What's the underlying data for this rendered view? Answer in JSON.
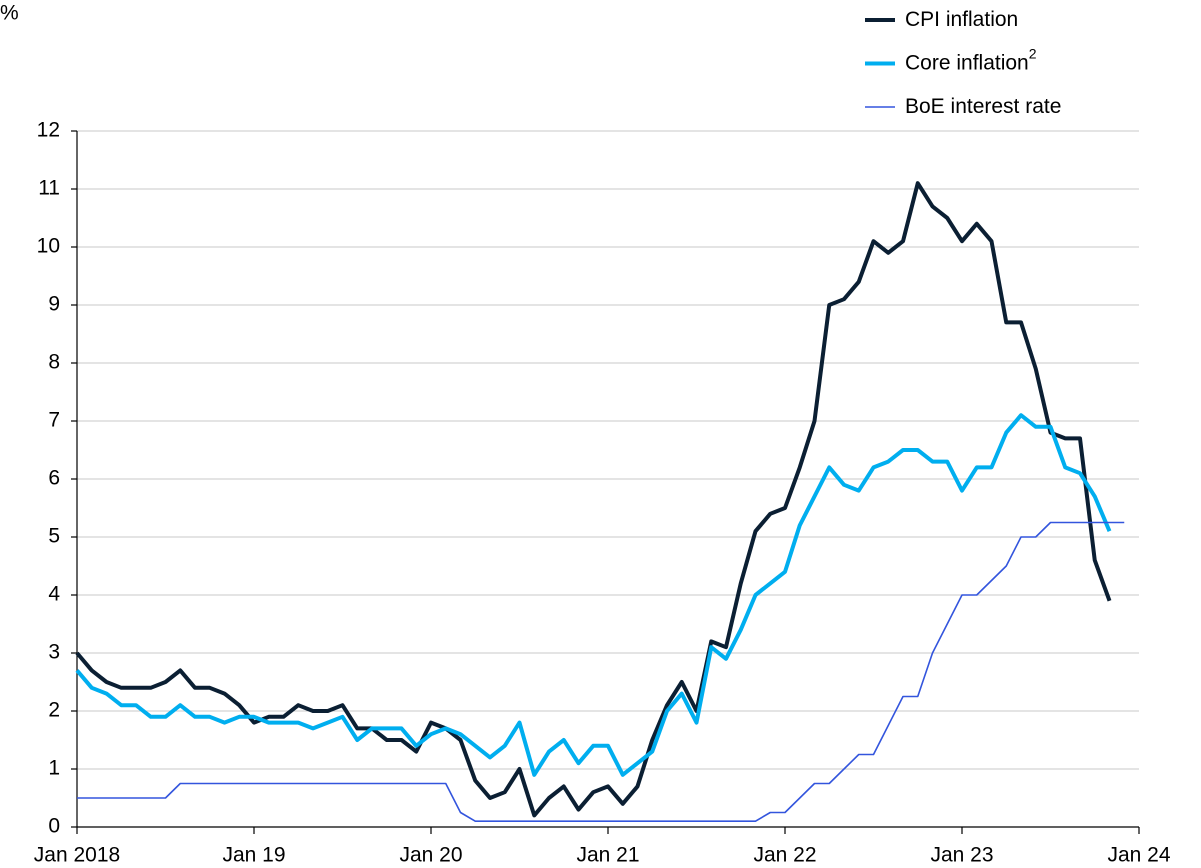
{
  "chart_data": {
    "type": "line",
    "y_unit_label": "%",
    "x": [
      0,
      1,
      2,
      3,
      4,
      5,
      6,
      7,
      8,
      9,
      10,
      11,
      12,
      13,
      14,
      15,
      16,
      17,
      18,
      19,
      20,
      21,
      22,
      23,
      24,
      25,
      26,
      27,
      28,
      29,
      30,
      31,
      32,
      33,
      34,
      35,
      36,
      37,
      38,
      39,
      40,
      41,
      42,
      43,
      44,
      45,
      46,
      47,
      48,
      49,
      50,
      51,
      52,
      53,
      54,
      55,
      56,
      57,
      58,
      59,
      60,
      61,
      62,
      63,
      64,
      65,
      66,
      67,
      68,
      69,
      70,
      71
    ],
    "xlim": [
      0,
      72
    ],
    "xticks": [
      {
        "value": 0,
        "label": "Jan 2018"
      },
      {
        "value": 12,
        "label": "Jan 19"
      },
      {
        "value": 24,
        "label": "Jan 20"
      },
      {
        "value": 36,
        "label": "Jan 21"
      },
      {
        "value": 48,
        "label": "Jan 22"
      },
      {
        "value": 60,
        "label": "Jan 23"
      },
      {
        "value": 72,
        "label": "Jan 24"
      }
    ],
    "ylim": [
      0,
      12
    ],
    "yticks": [
      0,
      1,
      2,
      3,
      4,
      5,
      6,
      7,
      8,
      9,
      10,
      11,
      12
    ],
    "grid": true,
    "legend": "top-right",
    "series": [
      {
        "name": "CPI inflation",
        "color": "#0b1f33",
        "width": 4,
        "values": [
          3.0,
          2.7,
          2.5,
          2.4,
          2.4,
          2.4,
          2.5,
          2.7,
          2.4,
          2.4,
          2.3,
          2.1,
          1.8,
          1.9,
          1.9,
          2.1,
          2.0,
          2.0,
          2.1,
          1.7,
          1.7,
          1.5,
          1.5,
          1.3,
          1.8,
          1.7,
          1.5,
          0.8,
          0.5,
          0.6,
          1.0,
          0.2,
          0.5,
          0.7,
          0.3,
          0.6,
          0.7,
          0.4,
          0.7,
          1.5,
          2.1,
          2.5,
          2.0,
          3.2,
          3.1,
          4.2,
          5.1,
          5.4,
          5.5,
          6.2,
          7.0,
          9.0,
          9.1,
          9.4,
          10.1,
          9.9,
          10.1,
          11.1,
          10.7,
          10.5,
          10.1,
          10.4,
          10.1,
          8.7,
          8.7,
          7.9,
          6.8,
          6.7,
          6.7,
          4.6,
          3.9,
          null
        ]
      },
      {
        "name": "Core inflation",
        "superscript": "2",
        "color": "#00aeef",
        "width": 4,
        "values": [
          2.7,
          2.4,
          2.3,
          2.1,
          2.1,
          1.9,
          1.9,
          2.1,
          1.9,
          1.9,
          1.8,
          1.9,
          1.9,
          1.8,
          1.8,
          1.8,
          1.7,
          1.8,
          1.9,
          1.5,
          1.7,
          1.7,
          1.7,
          1.4,
          1.6,
          1.7,
          1.6,
          1.4,
          1.2,
          1.4,
          1.8,
          0.9,
          1.3,
          1.5,
          1.1,
          1.4,
          1.4,
          0.9,
          1.1,
          1.3,
          2.0,
          2.3,
          1.8,
          3.1,
          2.9,
          3.4,
          4.0,
          4.2,
          4.4,
          5.2,
          5.7,
          6.2,
          5.9,
          5.8,
          6.2,
          6.3,
          6.5,
          6.5,
          6.3,
          6.3,
          5.8,
          6.2,
          6.2,
          6.8,
          7.1,
          6.9,
          6.9,
          6.2,
          6.1,
          5.7,
          5.1,
          null
        ]
      },
      {
        "name": "BoE interest rate",
        "color": "#3355dd",
        "width": 1.6,
        "values": [
          0.5,
          0.5,
          0.5,
          0.5,
          0.5,
          0.5,
          0.5,
          0.75,
          0.75,
          0.75,
          0.75,
          0.75,
          0.75,
          0.75,
          0.75,
          0.75,
          0.75,
          0.75,
          0.75,
          0.75,
          0.75,
          0.75,
          0.75,
          0.75,
          0.75,
          0.75,
          0.25,
          0.1,
          0.1,
          0.1,
          0.1,
          0.1,
          0.1,
          0.1,
          0.1,
          0.1,
          0.1,
          0.1,
          0.1,
          0.1,
          0.1,
          0.1,
          0.1,
          0.1,
          0.1,
          0.1,
          0.1,
          0.25,
          0.25,
          0.5,
          0.75,
          0.75,
          1.0,
          1.25,
          1.25,
          1.75,
          2.25,
          2.25,
          3.0,
          3.5,
          4.0,
          4.0,
          4.25,
          4.5,
          5.0,
          5.0,
          5.25,
          5.25,
          5.25,
          5.25,
          5.25,
          5.25
        ]
      }
    ]
  }
}
